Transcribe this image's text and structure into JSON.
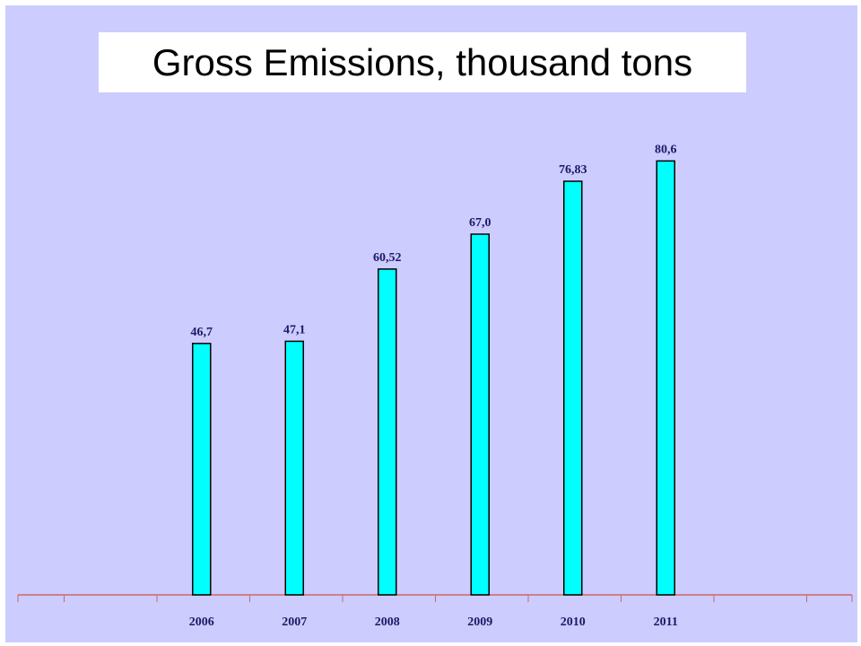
{
  "chart_data": {
    "type": "bar",
    "title": "Gross Emissions, thousand tons",
    "categories": [
      "2006",
      "2007",
      "2008",
      "2009",
      "2010",
      "2011"
    ],
    "values": [
      46.7,
      47.1,
      60.52,
      67.0,
      76.83,
      80.6
    ],
    "data_labels": [
      "46,7",
      "47,1",
      "60,52",
      "67,0",
      "76,83",
      "80,6"
    ],
    "xlabel": "",
    "ylabel": "",
    "ylim": [
      0,
      100
    ],
    "grid": false,
    "legend": "none",
    "colors": {
      "bar_fill": "#00ffff",
      "bar_stroke": "#000000",
      "axis": "#cc6666",
      "plot_background": "#ccccff",
      "label_text": "#1a1a66"
    }
  }
}
